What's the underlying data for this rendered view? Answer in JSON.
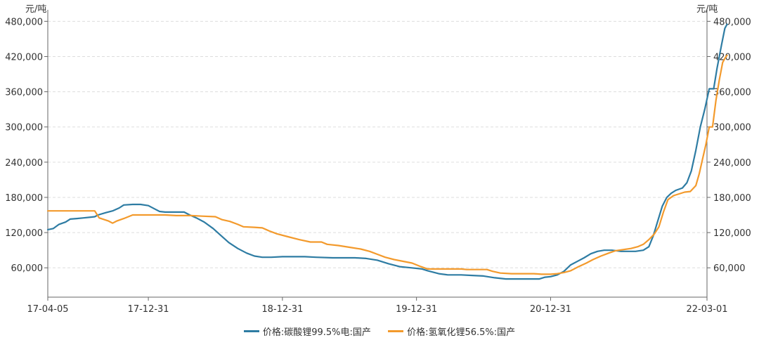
{
  "chart_data": {
    "type": "line",
    "unit_left": "元/吨",
    "unit_right": "元/吨",
    "x_tick_labels": [
      "17-04-05",
      "17-12-31",
      "18-12-31",
      "19-12-31",
      "20-12-31",
      "22-03-01"
    ],
    "x_tick_positions": [
      0,
      9,
      21,
      33,
      45,
      59
    ],
    "x_range": [
      0,
      59
    ],
    "y_ticks": [
      60000,
      120000,
      180000,
      240000,
      300000,
      360000,
      420000,
      480000
    ],
    "y_tick_labels": [
      "60,000",
      "120,000",
      "180,000",
      "240,000",
      "300,000",
      "360,000",
      "420,000",
      "480,000"
    ],
    "ylim": [
      10000,
      490000
    ],
    "grid": true,
    "legend_position": "bottom",
    "series": [
      {
        "name": "价格:碳酸锂99.5%电:国产",
        "color": "#2e7ca3",
        "points": [
          [
            0,
            125000
          ],
          [
            0.5,
            127000
          ],
          [
            1,
            134000
          ],
          [
            1.6,
            138000
          ],
          [
            2,
            143000
          ],
          [
            2.6,
            144000
          ],
          [
            3.2,
            145000
          ],
          [
            4.2,
            147000
          ],
          [
            4.5,
            150000
          ],
          [
            5.2,
            154000
          ],
          [
            5.8,
            157000
          ],
          [
            6.4,
            162000
          ],
          [
            6.8,
            167000
          ],
          [
            7.6,
            168000
          ],
          [
            8.3,
            168000
          ],
          [
            9,
            166000
          ],
          [
            9.6,
            160000
          ],
          [
            10,
            156000
          ],
          [
            10.5,
            155000
          ],
          [
            11.5,
            155000
          ],
          [
            12.2,
            155000
          ],
          [
            12.7,
            150000
          ],
          [
            13.3,
            145000
          ],
          [
            14,
            138000
          ],
          [
            14.8,
            127000
          ],
          [
            15.5,
            115000
          ],
          [
            16.2,
            103000
          ],
          [
            17,
            93000
          ],
          [
            17.8,
            85000
          ],
          [
            18.5,
            80000
          ],
          [
            19.2,
            78000
          ],
          [
            20,
            78000
          ],
          [
            21,
            79000
          ],
          [
            22,
            79000
          ],
          [
            23,
            79000
          ],
          [
            24,
            78000
          ],
          [
            25.5,
            77000
          ],
          [
            26.5,
            77000
          ],
          [
            27.5,
            77000
          ],
          [
            28.5,
            76000
          ],
          [
            29.5,
            73000
          ],
          [
            30.5,
            67000
          ],
          [
            31.5,
            62000
          ],
          [
            32.5,
            60000
          ],
          [
            33.5,
            58000
          ],
          [
            34,
            55000
          ],
          [
            35,
            50000
          ],
          [
            35.8,
            48000
          ],
          [
            37,
            48000
          ],
          [
            38,
            47000
          ],
          [
            39,
            46000
          ],
          [
            40,
            43000
          ],
          [
            41,
            41000
          ],
          [
            42,
            41000
          ],
          [
            43,
            41000
          ],
          [
            44,
            41000
          ],
          [
            44.5,
            44000
          ],
          [
            45,
            45000
          ],
          [
            45.6,
            48000
          ],
          [
            46.2,
            54000
          ],
          [
            46.8,
            65000
          ],
          [
            47.5,
            72000
          ],
          [
            48,
            77000
          ],
          [
            48.6,
            84000
          ],
          [
            49.2,
            88000
          ],
          [
            49.8,
            90000
          ],
          [
            50.5,
            90000
          ],
          [
            51.3,
            88000
          ],
          [
            52,
            88000
          ],
          [
            52.6,
            88000
          ],
          [
            53.3,
            90000
          ],
          [
            53.8,
            96000
          ],
          [
            54.2,
            115000
          ],
          [
            54.6,
            140000
          ],
          [
            55,
            165000
          ],
          [
            55.4,
            180000
          ],
          [
            55.8,
            187000
          ],
          [
            56.2,
            192000
          ],
          [
            56.8,
            196000
          ],
          [
            57.2,
            205000
          ],
          [
            57.6,
            225000
          ],
          [
            58,
            260000
          ],
          [
            58.4,
            300000
          ],
          [
            58.8,
            330000
          ],
          [
            59.2,
            365000
          ],
          [
            59.6,
            365000
          ],
          [
            59.9,
            400000
          ],
          [
            60.3,
            440000
          ],
          [
            60.6,
            468000
          ],
          [
            60.8,
            475000
          ]
        ]
      },
      {
        "name": "价格:氢氧化锂56.5%:国产",
        "color": "#f39a2c",
        "points": [
          [
            0,
            157000
          ],
          [
            4.2,
            157000
          ],
          [
            4.6,
            145000
          ],
          [
            5.4,
            140000
          ],
          [
            5.8,
            136000
          ],
          [
            6.2,
            140000
          ],
          [
            6.8,
            144000
          ],
          [
            7.6,
            150000
          ],
          [
            8.5,
            150000
          ],
          [
            9.5,
            150000
          ],
          [
            10.5,
            150000
          ],
          [
            11.5,
            149000
          ],
          [
            12.2,
            149000
          ],
          [
            12.8,
            149000
          ],
          [
            13.8,
            148000
          ],
          [
            15,
            147000
          ],
          [
            15.6,
            142000
          ],
          [
            16.3,
            139000
          ],
          [
            17,
            134000
          ],
          [
            17.5,
            130000
          ],
          [
            18.5,
            129000
          ],
          [
            19.2,
            128000
          ],
          [
            19.8,
            123000
          ],
          [
            20.5,
            118000
          ],
          [
            21.5,
            113000
          ],
          [
            22.5,
            108000
          ],
          [
            23.5,
            104000
          ],
          [
            24.5,
            104000
          ],
          [
            25,
            100000
          ],
          [
            26,
            98000
          ],
          [
            27,
            95000
          ],
          [
            28,
            92000
          ],
          [
            28.8,
            88000
          ],
          [
            29.5,
            83000
          ],
          [
            30.2,
            78000
          ],
          [
            31,
            74000
          ],
          [
            31.8,
            71000
          ],
          [
            32.6,
            68000
          ],
          [
            33.4,
            62000
          ],
          [
            34,
            58000
          ],
          [
            35,
            58000
          ],
          [
            36,
            58000
          ],
          [
            37,
            58000
          ],
          [
            37.5,
            57000
          ],
          [
            38.5,
            57000
          ],
          [
            39.3,
            57000
          ],
          [
            39.8,
            54000
          ],
          [
            40.5,
            51000
          ],
          [
            41.5,
            50000
          ],
          [
            42.5,
            50000
          ],
          [
            43.5,
            50000
          ],
          [
            44.2,
            49000
          ],
          [
            45,
            49000
          ],
          [
            45.6,
            50000
          ],
          [
            46.2,
            52000
          ],
          [
            46.8,
            55000
          ],
          [
            47.5,
            62000
          ],
          [
            48.2,
            68000
          ],
          [
            48.8,
            74000
          ],
          [
            49.5,
            80000
          ],
          [
            50.2,
            85000
          ],
          [
            50.8,
            89000
          ],
          [
            51.5,
            91000
          ],
          [
            52.2,
            93000
          ],
          [
            52.8,
            96000
          ],
          [
            53.3,
            100000
          ],
          [
            53.8,
            108000
          ],
          [
            54.3,
            118000
          ],
          [
            54.7,
            130000
          ],
          [
            55.1,
            155000
          ],
          [
            55.5,
            176000
          ],
          [
            56,
            183000
          ],
          [
            56.5,
            186000
          ],
          [
            57,
            189000
          ],
          [
            57.5,
            190000
          ],
          [
            58,
            200000
          ],
          [
            58.3,
            220000
          ],
          [
            58.6,
            245000
          ],
          [
            58.9,
            270000
          ],
          [
            59.2,
            300000
          ],
          [
            59.5,
            300000
          ],
          [
            59.8,
            345000
          ],
          [
            60.1,
            380000
          ],
          [
            60.4,
            410000
          ],
          [
            60.7,
            420000
          ],
          [
            60.8,
            422000
          ]
        ]
      }
    ]
  }
}
